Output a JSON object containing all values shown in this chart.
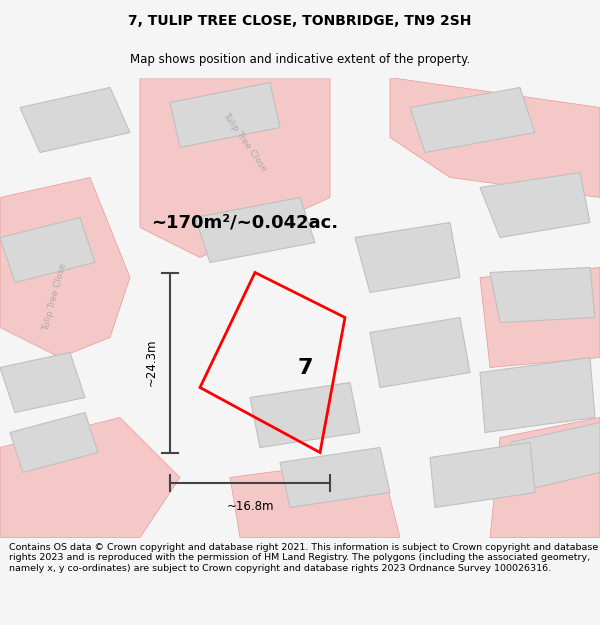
{
  "title": "7, TULIP TREE CLOSE, TONBRIDGE, TN9 2SH",
  "subtitle": "Map shows position and indicative extent of the property.",
  "footer": "Contains OS data © Crown copyright and database right 2021. This information is subject to Crown copyright and database rights 2023 and is reproduced with the permission of HM Land Registry. The polygons (including the associated geometry, namely x, y co-ordinates) are subject to Crown copyright and database rights 2023 Ordnance Survey 100026316.",
  "area_label": "~170m²/~0.042ac.",
  "width_label": "~16.8m",
  "height_label": "~24.3m",
  "plot_number": "7",
  "bg_color": "#f5f5f5",
  "map_bg": "#ffffff",
  "plot_color": "#ff0000",
  "building_fill": "#d8d8d8",
  "building_stroke": "#c0c0c0",
  "road_fill": "#f5c8c8",
  "road_stroke": "#e89898",
  "dim_color": "#444444",
  "road_label_color": "#aaaaaa",
  "title_fontsize": 10,
  "subtitle_fontsize": 8.5,
  "footer_fontsize": 6.8,
  "area_fontsize": 13,
  "dim_fontsize": 8.5,
  "plot_label_fontsize": 16
}
